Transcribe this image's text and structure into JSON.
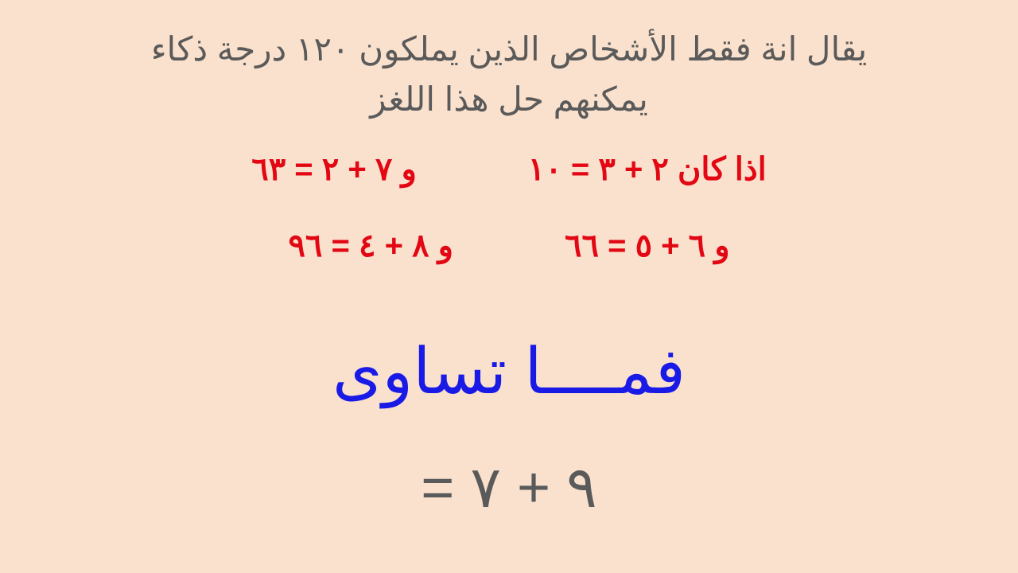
{
  "background_color": "#fae1cd",
  "header": {
    "line1": "يقال انة فقط الأشخاص الذين يملكون ١٢٠ درجة  ذكاء",
    "line2": "يمكنهم حل هذا اللغز",
    "color": "#5a5a5a",
    "fontsize": 42
  },
  "equations": {
    "color": "#e30613",
    "fontsize": 40,
    "row1": {
      "right": "اذا كان ٢ + ٣ = ١٠",
      "left": "و ٧ + ٢ = ٦٣"
    },
    "row2": {
      "right": "و ٦ + ٥ = ٦٦",
      "left": "و ٨ + ٤ = ٩٦"
    }
  },
  "question": {
    "text": "فمــــا تساوى",
    "color": "#1a1ae6",
    "fontsize": 80
  },
  "final": {
    "text": "٩ + ٧ =",
    "color": "#5a5a5a",
    "fontsize": 72
  }
}
